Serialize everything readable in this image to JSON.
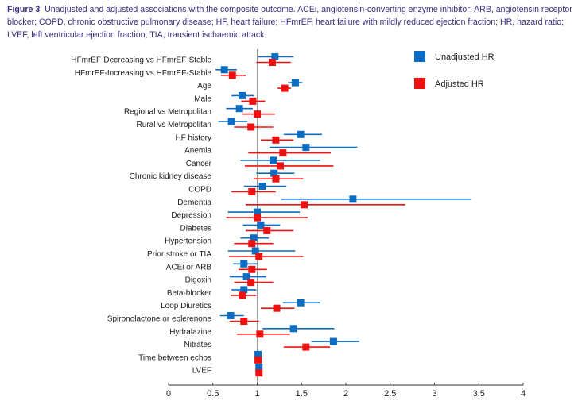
{
  "caption": {
    "figure_label": "Figure 3",
    "text": "Unadjusted and adjusted associations with the composite outcome. ACEi, angiotensin-converting enzyme inhibitor; ARB, angiotensin receptor blocker; COPD, chronic obstructive pulmonary disease; HF, heart failure; HFmrEF, heart failure with mildly reduced ejection fraction; HR, hazard ratio; LVEF, left ventricular ejection fraction; TIA, transient ischaemic attack."
  },
  "colors": {
    "unadjusted": "#0a6cc2",
    "adjusted": "#ee1111",
    "refline": "#9a9a9a",
    "axis": "#333333"
  },
  "chart_data": {
    "type": "scatter",
    "subtype": "forest-plot",
    "title": "",
    "xlabel": "",
    "ylabel": "",
    "xlim": [
      0,
      4
    ],
    "xticks": [
      0,
      0.5,
      1,
      1.5,
      2,
      2.5,
      3,
      3.5,
      4
    ],
    "tick_labels": [
      "0",
      "0.5",
      "1",
      "1.5",
      "2",
      "2.5",
      "3",
      "3.5",
      "4"
    ],
    "reference_line": 1,
    "grid": false,
    "legend_position": "top-right",
    "legend": [
      "Unadjusted HR",
      "Adjusted HR"
    ],
    "categories": [
      "HFmrEF-Decreasing vs HFmrEF-Stable",
      "HFmrEF-Increasing vs HFmrEF-Stable",
      "Age",
      "Male",
      "Regional vs Metropolitan",
      "Rural vs Metropolitan",
      "HF history",
      "Anemia",
      "Cancer",
      "Chronic kidney disease",
      "COPD",
      "Dementia",
      "Depression",
      "Diabetes",
      "Hypertension",
      "Prior stroke or TIA",
      "ACEi or ARB",
      "Digoxin",
      "Beta-blocker",
      "Loop Diuretics",
      "Spironolactone or eplerenone",
      "Hydralazine",
      "Nitrates",
      "Time between echos",
      "LVEF"
    ],
    "series": [
      {
        "name": "Unadjusted HR",
        "hr": [
          1.2,
          0.63,
          1.43,
          0.83,
          0.8,
          0.71,
          1.49,
          1.55,
          1.18,
          1.19,
          1.06,
          2.08,
          1.0,
          1.04,
          0.96,
          0.98,
          0.85,
          0.88,
          0.85,
          1.49,
          0.7,
          1.41,
          1.86,
          1.01,
          1.02
        ],
        "lower": [
          1.01,
          0.53,
          1.35,
          0.71,
          0.65,
          0.56,
          1.3,
          1.14,
          0.81,
          0.99,
          0.85,
          1.27,
          0.67,
          0.84,
          0.81,
          0.67,
          0.73,
          0.69,
          0.71,
          1.29,
          0.58,
          1.06,
          1.61,
          1.0,
          1.01
        ],
        "upper": [
          1.41,
          0.77,
          1.51,
          0.96,
          0.95,
          0.89,
          1.73,
          2.13,
          1.71,
          1.42,
          1.33,
          3.41,
          1.48,
          1.26,
          1.13,
          1.43,
          1.0,
          1.1,
          0.99,
          1.71,
          0.85,
          1.87,
          2.15,
          1.02,
          1.03
        ]
      },
      {
        "name": "Adjusted HR",
        "hr": [
          1.17,
          0.72,
          1.31,
          0.95,
          1.0,
          0.93,
          1.21,
          1.29,
          1.26,
          1.21,
          0.94,
          1.53,
          1.0,
          1.11,
          0.94,
          1.02,
          0.94,
          0.93,
          0.83,
          1.22,
          0.85,
          1.03,
          1.55,
          1.01,
          1.02
        ],
        "lower": [
          0.99,
          0.59,
          1.23,
          0.82,
          0.83,
          0.74,
          1.04,
          0.9,
          0.86,
          0.96,
          0.71,
          0.87,
          0.65,
          0.87,
          0.74,
          0.68,
          0.79,
          0.74,
          0.7,
          1.04,
          0.69,
          0.77,
          1.3,
          1.0,
          1.01
        ],
        "upper": [
          1.38,
          0.87,
          1.38,
          1.09,
          1.2,
          1.18,
          1.41,
          1.83,
          1.86,
          1.52,
          1.21,
          2.67,
          1.57,
          1.41,
          1.18,
          1.52,
          1.11,
          1.18,
          0.99,
          1.42,
          1.02,
          1.37,
          1.82,
          1.02,
          1.03
        ]
      }
    ]
  }
}
